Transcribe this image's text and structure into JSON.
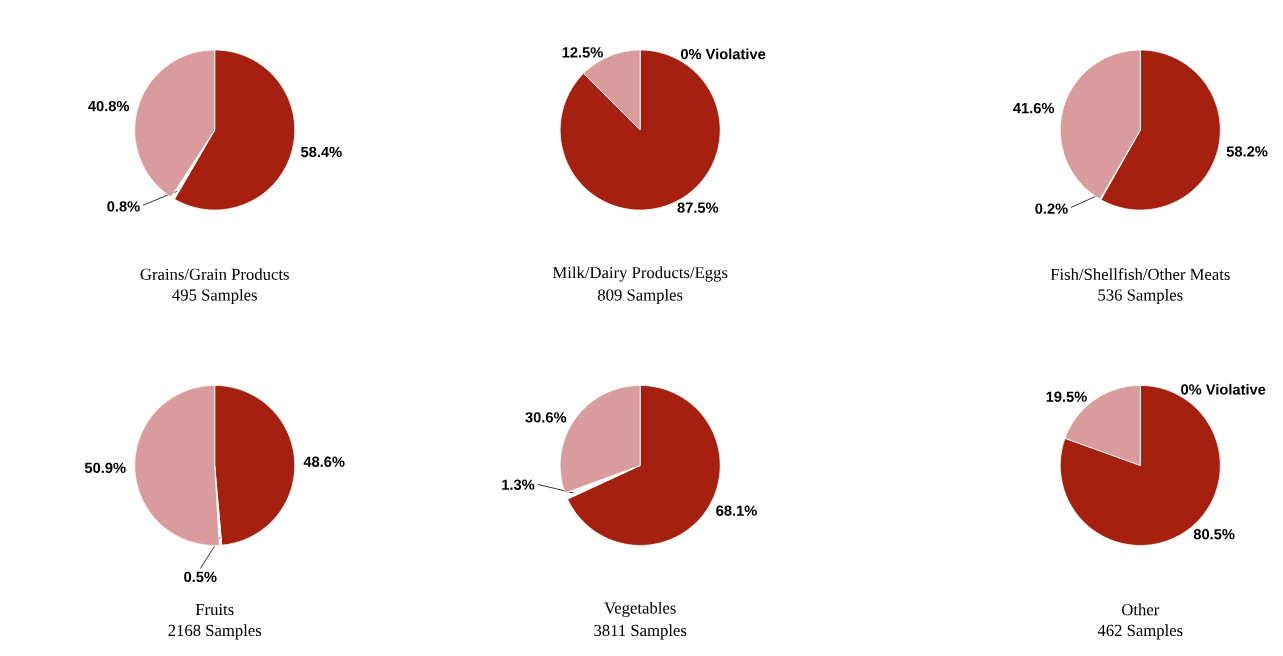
{
  "chart_data": [
    {
      "type": "pie",
      "title": "Grains/Grain Products",
      "subtitle": "495 Samples",
      "categories": [
        null,
        null,
        null
      ],
      "values": [
        58.4,
        0.8,
        40.8
      ],
      "colors": [
        "#a5200f",
        "#ffffff",
        "#d99b9b"
      ],
      "value_labels": [
        "58.4%",
        "0.8%",
        "40.8%"
      ]
    },
    {
      "type": "pie",
      "title": "Milk/Dairy Products/Eggs",
      "subtitle": "809 Samples",
      "categories": [
        null,
        null,
        null
      ],
      "values": [
        0,
        87.5,
        12.5
      ],
      "colors": [
        "#ffffff",
        "#a5200f",
        "#d99b9b"
      ],
      "value_labels": [
        "0% Violative",
        "87.5%",
        "12.5%"
      ]
    },
    {
      "type": "pie",
      "title": "Fish/Shellfish/Other Meats",
      "subtitle": "536 Samples",
      "categories": [
        null,
        null,
        null
      ],
      "values": [
        58.2,
        0.2,
        41.6
      ],
      "colors": [
        "#a5200f",
        "#ffffff",
        "#d99b9b"
      ],
      "value_labels": [
        "58.2%",
        "0.2%",
        "41.6%"
      ]
    },
    {
      "type": "pie",
      "title": "Fruits",
      "subtitle": "2168 Samples",
      "categories": [
        null,
        null,
        null
      ],
      "values": [
        48.6,
        0.5,
        50.9
      ],
      "colors": [
        "#a5200f",
        "#ffffff",
        "#d99b9b"
      ],
      "value_labels": [
        "48.6%",
        "0.5%",
        "50.9%"
      ]
    },
    {
      "type": "pie",
      "title": "Vegetables",
      "subtitle": "3811 Samples",
      "categories": [
        null,
        null,
        null
      ],
      "values": [
        68.1,
        1.3,
        30.6
      ],
      "colors": [
        "#a5200f",
        "#ffffff",
        "#d99b9b"
      ],
      "value_labels": [
        "68.1%",
        "1.3%",
        "30.6%"
      ]
    },
    {
      "type": "pie",
      "title": "Other",
      "subtitle": "462 Samples",
      "categories": [
        null,
        null,
        null
      ],
      "values": [
        0,
        80.5,
        19.5
      ],
      "colors": [
        "#ffffff",
        "#a5200f",
        "#d99b9b"
      ],
      "value_labels": [
        "0% Violative",
        "80.5%",
        "19.5%"
      ]
    }
  ]
}
